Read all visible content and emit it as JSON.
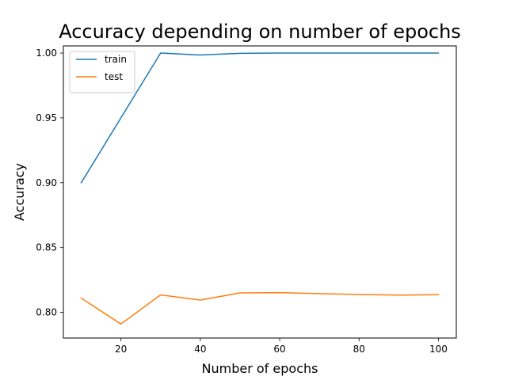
{
  "chart_data": {
    "type": "line",
    "title": "Accuracy depending on number of epochs",
    "xlabel": "Number of epochs",
    "ylabel": "Accuracy",
    "x": [
      10,
      20,
      30,
      40,
      50,
      60,
      70,
      80,
      90,
      100
    ],
    "xlim": [
      5.5,
      104.5
    ],
    "ylim": [
      0.7802,
      1.0055
    ],
    "xticks": [
      20,
      40,
      60,
      80,
      100
    ],
    "xtick_labels": [
      "20",
      "40",
      "60",
      "80",
      "100"
    ],
    "yticks": [
      0.8,
      0.85,
      0.9,
      0.95,
      1.0
    ],
    "ytick_labels": [
      "0.80",
      "0.85",
      "0.90",
      "0.95",
      "1.00"
    ],
    "grid": false,
    "legend_position": "top-left",
    "series": [
      {
        "name": "train",
        "color": "#1f77b4",
        "values": [
          0.9,
          0.95,
          1.0,
          0.9985,
          0.9998,
          1.0,
          1.0,
          1.0,
          1.0,
          1.0
        ]
      },
      {
        "name": "test",
        "color": "#ff7f0e",
        "values": [
          0.811,
          0.791,
          0.8135,
          0.8095,
          0.815,
          0.8152,
          0.8145,
          0.8138,
          0.8133,
          0.8136
        ]
      }
    ]
  }
}
